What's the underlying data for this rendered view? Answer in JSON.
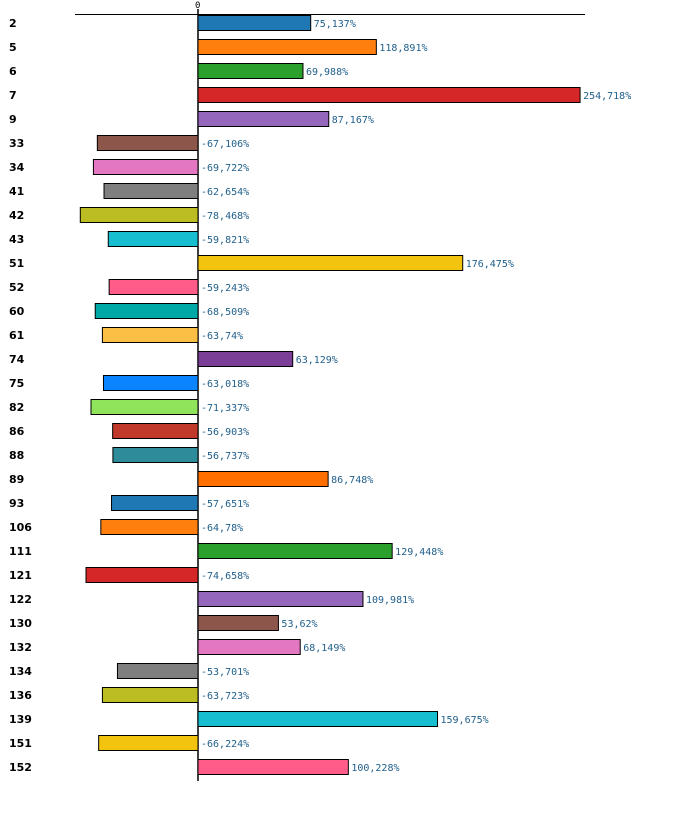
{
  "chart_data": {
    "type": "bar",
    "orientation": "horizontal",
    "title": "",
    "xlabel": "",
    "ylabel": "",
    "zero_tick_label": "0",
    "xlim": [
      -100,
      250
    ],
    "categories": [
      "2",
      "5",
      "6",
      "7",
      "9",
      "33",
      "34",
      "41",
      "42",
      "43",
      "51",
      "52",
      "60",
      "61",
      "74",
      "75",
      "82",
      "86",
      "88",
      "89",
      "93",
      "106",
      "111",
      "121",
      "122",
      "130",
      "132",
      "134",
      "136",
      "139",
      "151",
      "152"
    ],
    "values": [
      75.137,
      118.891,
      69.988,
      254.718,
      87.167,
      -67.106,
      -69.722,
      -62.654,
      -78.468,
      -59.821,
      176.475,
      -59.243,
      -68.509,
      -63.74,
      63.129,
      -63.018,
      -71.337,
      -56.903,
      -56.737,
      86.748,
      -57.651,
      -64.78,
      129.448,
      -74.658,
      109.981,
      53.62,
      68.149,
      -53.701,
      -63.723,
      159.675,
      -66.224,
      100.228
    ],
    "value_labels": [
      "75,137%",
      "118,891%",
      "69,988%",
      "254,718%",
      "87,167%",
      "-67,106%",
      "-69,722%",
      "-62,654%",
      "-78,468%",
      "-59,821%",
      "176,475%",
      "-59,243%",
      "-68,509%",
      "-63,74%",
      "63,129%",
      "-63,018%",
      "-71,337%",
      "-56,903%",
      "-56,737%",
      "86,748%",
      "-57,651%",
      "-64,78%",
      "129,448%",
      "-74,658%",
      "109,981%",
      "53,62%",
      "68,149%",
      "-53,701%",
      "-63,723%",
      "159,675%",
      "-66,224%",
      "100,228%"
    ],
    "colors": [
      "#1f77b4",
      "#ff7f0e",
      "#2ca02c",
      "#d62728",
      "#9467bd",
      "#8c564b",
      "#e377c2",
      "#7f7f7f",
      "#bcbd22",
      "#17becf",
      "#f2c40f",
      "#ff5c8a",
      "#00a9a5",
      "#fbbf45",
      "#7b3f98",
      "#0a84ff",
      "#8fe45b",
      "#c0392b",
      "#2e8b9a",
      "#ff6f00",
      "#1f77b4",
      "#ff7f0e",
      "#2ca02c",
      "#d62728",
      "#9467bd",
      "#8c564b",
      "#e377c2",
      "#7f7f7f",
      "#bcbd22",
      "#17becf",
      "#f2c40f",
      "#ff5c8a"
    ]
  }
}
